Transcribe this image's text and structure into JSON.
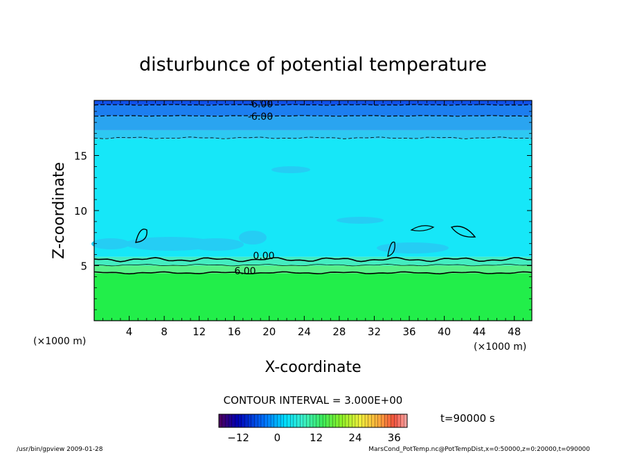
{
  "chart_data": {
    "type": "heatmap",
    "title": "disturbunce of potential temperature",
    "xlabel": "X-coordinate",
    "ylabel": "Z-coordinate",
    "x_unit": "(×1000 m)",
    "z_unit": "(×1000 m)",
    "xlim": [
      0,
      50
    ],
    "ylim": [
      0,
      20
    ],
    "x_ticks": [
      "4",
      "8",
      "12",
      "16",
      "20",
      "24",
      "28",
      "32",
      "36",
      "40",
      "44",
      "48"
    ],
    "y_ticks": [
      "5",
      "10",
      "15"
    ],
    "contour_labels": [
      "-6.00",
      "-6.00",
      "0.00",
      "6.00"
    ],
    "contour_interval": "CONTOUR INTERVAL = 3.000E+00",
    "time_label": "t=90000 s",
    "colorbar_ticks": [
      "-12",
      "0",
      "12",
      "24",
      "36"
    ],
    "colorbar_range": [
      -18,
      40
    ],
    "layers": [
      {
        "z_bottom": 0,
        "z_top": 4.3,
        "value_range": "6 to 9",
        "color": "#22ee4a"
      },
      {
        "z_bottom": 4.3,
        "z_top": 5.0,
        "value_range": "3 to 6",
        "color": "#58f088"
      },
      {
        "z_bottom": 5.0,
        "z_top": 5.8,
        "value_range": "0 to 3",
        "color": "#44ecc0"
      },
      {
        "z_bottom": 5.8,
        "z_top": 16.5,
        "value_range": "-3 to 0",
        "color": "#16e7f8"
      },
      {
        "z_bottom": 16.5,
        "z_top": 17.3,
        "value_range": "-6 to -3",
        "color": "#2ec8f2"
      },
      {
        "z_bottom": 17.3,
        "z_top": 18.6,
        "value_range": "-9 to -6",
        "color": "#2aa4f0"
      },
      {
        "z_bottom": 18.6,
        "z_top": 19.6,
        "value_range": "-12 to -9",
        "color": "#1c7ef0"
      },
      {
        "z_bottom": 19.6,
        "z_top": 20,
        "value_range": "-15 to -12",
        "color": "#1050e8"
      }
    ]
  },
  "footer": {
    "left": "/usr/bin/gpview   2009-01-28",
    "right": "MarsCond_PotTemp.nc@PotTempDist,x=0:50000,z=0:20000,t=090000"
  }
}
